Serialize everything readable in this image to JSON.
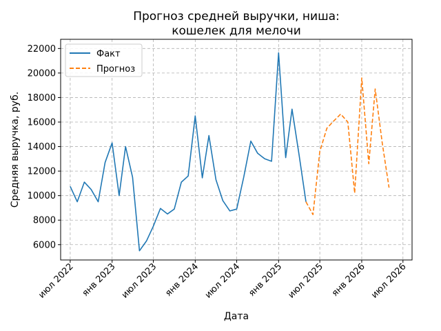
{
  "chart_data": {
    "type": "line",
    "title_line1": "Прогноз средней выручки, ниша:",
    "title_line2": "кошелек для мелочи",
    "xlabel": "Дата",
    "ylabel": "Средняя выручка, руб.",
    "xlim": [
      "2022-05-20",
      "2026-08-10"
    ],
    "ylim": [
      4750,
      22750
    ],
    "grid": true,
    "legend_position": "top-left",
    "x_ticks": [
      {
        "date": "2022-07-01",
        "label": "июл 2022"
      },
      {
        "date": "2023-01-01",
        "label": "янв 2023"
      },
      {
        "date": "2023-07-01",
        "label": "июл 2023"
      },
      {
        "date": "2024-01-01",
        "label": "янв 2024"
      },
      {
        "date": "2024-07-01",
        "label": "июл 2024"
      },
      {
        "date": "2025-01-01",
        "label": "янв 2025"
      },
      {
        "date": "2025-07-01",
        "label": "июл 2025"
      },
      {
        "date": "2026-01-01",
        "label": "янв 2026"
      },
      {
        "date": "2026-07-01",
        "label": "июл 2026"
      }
    ],
    "y_ticks": [
      6000,
      8000,
      10000,
      12000,
      14000,
      16000,
      18000,
      20000,
      22000
    ],
    "series": [
      {
        "name": "Факт",
        "color": "#1f77b4",
        "dash": "solid",
        "points": [
          [
            "2022-07-01",
            10750
          ],
          [
            "2022-08-01",
            9500
          ],
          [
            "2022-09-01",
            11100
          ],
          [
            "2022-10-01",
            10500
          ],
          [
            "2022-11-01",
            9500
          ],
          [
            "2022-12-01",
            12700
          ],
          [
            "2023-01-01",
            14300
          ],
          [
            "2023-02-01",
            10000
          ],
          [
            "2023-03-01",
            14000
          ],
          [
            "2023-04-01",
            11500
          ],
          [
            "2023-05-01",
            5500
          ],
          [
            "2023-06-01",
            6300
          ],
          [
            "2023-07-01",
            7500
          ],
          [
            "2023-08-01",
            8950
          ],
          [
            "2023-09-01",
            8500
          ],
          [
            "2023-10-01",
            8900
          ],
          [
            "2023-11-01",
            11100
          ],
          [
            "2023-12-01",
            11600
          ],
          [
            "2024-01-01",
            16500
          ],
          [
            "2024-02-01",
            11450
          ],
          [
            "2024-03-01",
            14900
          ],
          [
            "2024-04-01",
            11300
          ],
          [
            "2024-05-01",
            9600
          ],
          [
            "2024-06-01",
            8750
          ],
          [
            "2024-07-01",
            8900
          ],
          [
            "2024-08-01",
            11500
          ],
          [
            "2024-09-01",
            14450
          ],
          [
            "2024-10-01",
            13450
          ],
          [
            "2024-11-01",
            13000
          ],
          [
            "2024-12-01",
            12800
          ],
          [
            "2025-01-01",
            21650
          ],
          [
            "2025-02-01",
            13100
          ],
          [
            "2025-03-01",
            17050
          ],
          [
            "2025-04-01",
            13300
          ],
          [
            "2025-05-01",
            9500
          ]
        ]
      },
      {
        "name": "Прогноз",
        "color": "#ff7f0e",
        "dash": "dashed",
        "points": [
          [
            "2025-05-01",
            9500
          ],
          [
            "2025-06-01",
            8450
          ],
          [
            "2025-07-01",
            13600
          ],
          [
            "2025-08-01",
            15500
          ],
          [
            "2025-09-01",
            16100
          ],
          [
            "2025-10-01",
            16650
          ],
          [
            "2025-11-01",
            16000
          ],
          [
            "2025-12-01",
            10200
          ],
          [
            "2026-01-01",
            19600
          ],
          [
            "2026-02-01",
            12600
          ],
          [
            "2026-03-01",
            18700
          ],
          [
            "2026-04-01",
            14300
          ],
          [
            "2026-05-01",
            10650
          ]
        ]
      }
    ]
  }
}
